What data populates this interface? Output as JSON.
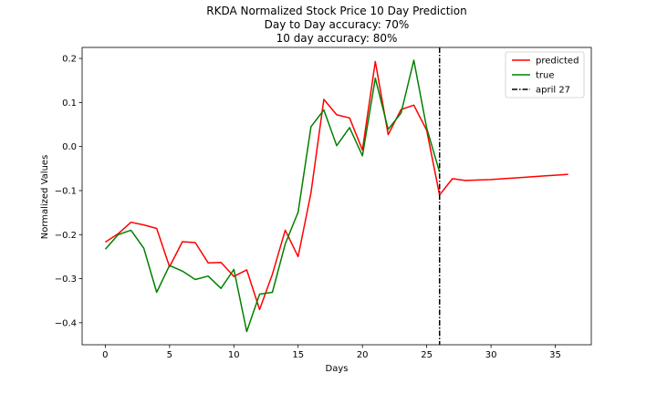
{
  "chart_data": {
    "type": "line",
    "title_lines": [
      "RKDA Normalized Stock Price 10 Day Prediction",
      "Day to Day accuracy: 70%",
      "10 day accuracy: 80%"
    ],
    "xlabel": "Days",
    "ylabel": "Normalized Values",
    "xlim": [
      -1.8,
      37.8
    ],
    "ylim": [
      -0.45,
      0.225
    ],
    "xticks": [
      0,
      5,
      10,
      15,
      20,
      25,
      30,
      35
    ],
    "yticks": [
      -0.4,
      -0.3,
      -0.2,
      -0.1,
      0.0,
      0.1,
      0.2
    ],
    "ytick_labels": [
      "−0.4",
      "−0.3",
      "−0.2",
      "−0.1",
      "0.0",
      "0.1",
      "0.2"
    ],
    "grid": false,
    "legend_position": "upper right",
    "series": [
      {
        "name": "predicted",
        "color": "#ff0000",
        "x": [
          0,
          1,
          2,
          3,
          4,
          5,
          6,
          7,
          8,
          9,
          10,
          11,
          12,
          13,
          14,
          15,
          16,
          17,
          18,
          19,
          20,
          21,
          22,
          23,
          24,
          25,
          26,
          27,
          28,
          29,
          30,
          31,
          32,
          33,
          34,
          35,
          36
        ],
        "y": [
          -0.217,
          -0.198,
          -0.172,
          -0.178,
          -0.186,
          -0.273,
          -0.216,
          -0.218,
          -0.264,
          -0.263,
          -0.295,
          -0.28,
          -0.37,
          -0.29,
          -0.19,
          -0.25,
          -0.105,
          0.107,
          0.072,
          0.065,
          -0.008,
          0.193,
          0.027,
          0.084,
          0.094,
          0.037,
          -0.11,
          -0.073,
          -0.077,
          -0.076,
          -0.075,
          -0.073,
          -0.071,
          -0.069,
          -0.067,
          -0.065,
          -0.063
        ]
      },
      {
        "name": "true",
        "color": "#008000",
        "x": [
          0,
          1,
          2,
          3,
          4,
          5,
          6,
          7,
          8,
          9,
          10,
          11,
          12,
          13,
          14,
          15,
          16,
          17,
          18,
          19,
          20,
          21,
          22,
          23,
          24,
          25,
          26
        ],
        "y": [
          -0.233,
          -0.2,
          -0.19,
          -0.231,
          -0.331,
          -0.27,
          -0.283,
          -0.302,
          -0.294,
          -0.322,
          -0.279,
          -0.42,
          -0.335,
          -0.331,
          -0.221,
          -0.149,
          0.045,
          0.083,
          0.002,
          0.043,
          -0.021,
          0.155,
          0.039,
          0.076,
          0.196,
          0.042,
          -0.058
        ]
      },
      {
        "name": "april 27",
        "color": "#000000",
        "type": "vline",
        "x": 26
      }
    ]
  }
}
